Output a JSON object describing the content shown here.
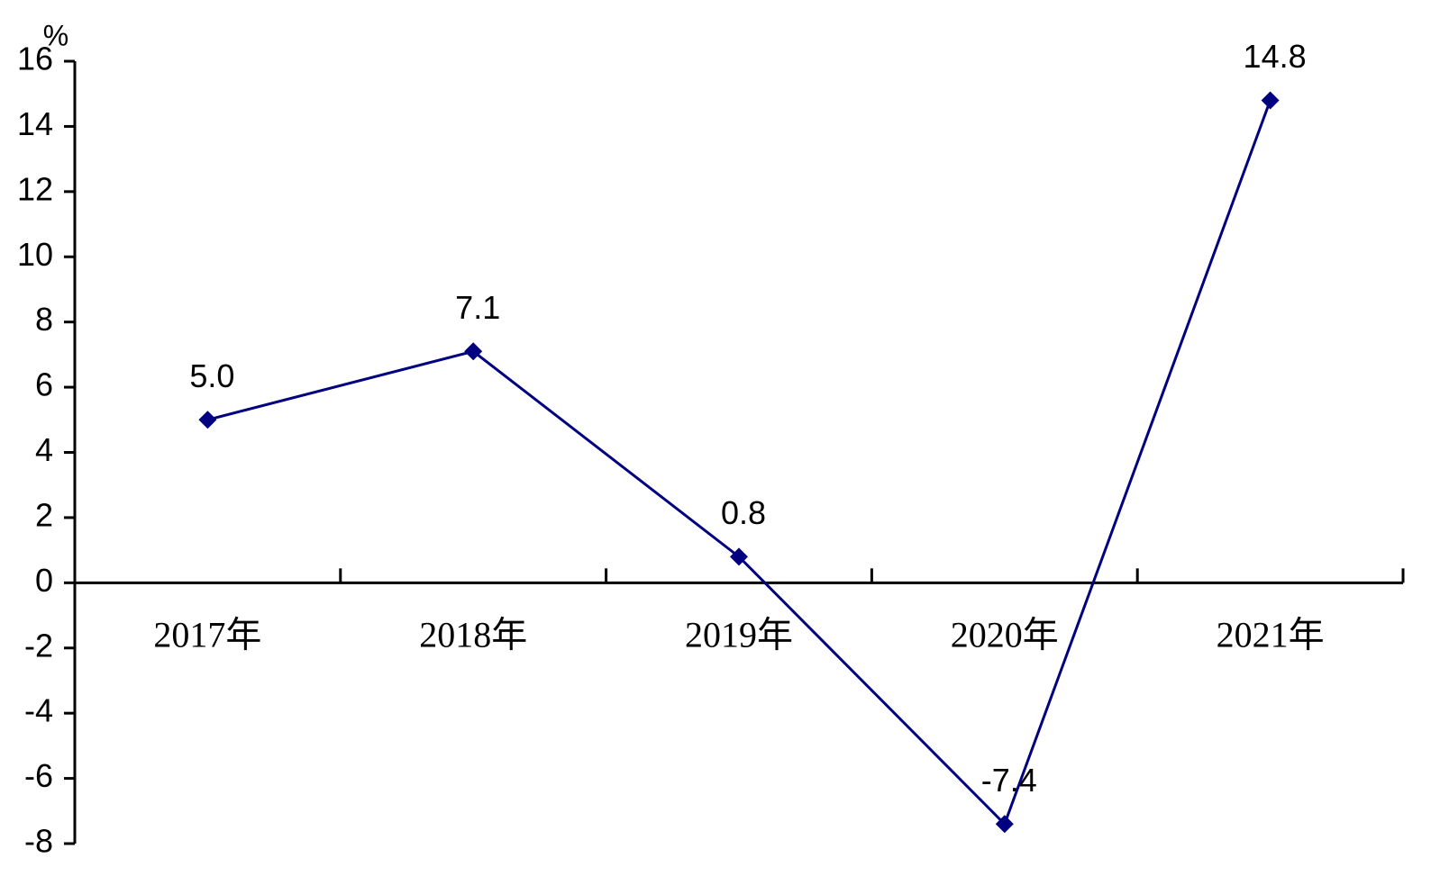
{
  "chart_data": {
    "type": "line",
    "y_label": "%",
    "categories": [
      "2017年",
      "2018年",
      "2019年",
      "2020年",
      "2021年"
    ],
    "values": [
      5,
      7.1,
      0.8,
      -7.4,
      14.8
    ],
    "value_labels": [
      "5.0",
      "7.1",
      "0.8",
      "-7.4",
      "14.8"
    ],
    "color": "#000080",
    "ylim": [
      -8,
      16
    ],
    "yticks": [
      -8,
      -6,
      -4,
      -2,
      0,
      2,
      4,
      6,
      8,
      10,
      12,
      14,
      16
    ]
  }
}
